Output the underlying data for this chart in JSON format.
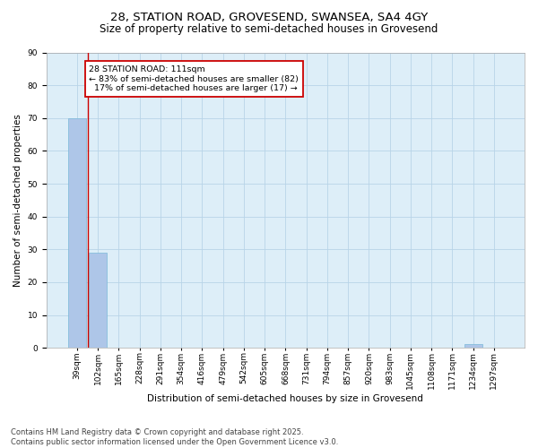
{
  "title": "28, STATION ROAD, GROVESEND, SWANSEA, SA4 4GY",
  "subtitle": "Size of property relative to semi-detached houses in Grovesend",
  "xlabel": "Distribution of semi-detached houses by size in Grovesend",
  "ylabel": "Number of semi-detached properties",
  "categories": [
    "39sqm",
    "102sqm",
    "165sqm",
    "228sqm",
    "291sqm",
    "354sqm",
    "416sqm",
    "479sqm",
    "542sqm",
    "605sqm",
    "668sqm",
    "731sqm",
    "794sqm",
    "857sqm",
    "920sqm",
    "983sqm",
    "1045sqm",
    "1108sqm",
    "1171sqm",
    "1234sqm",
    "1297sqm"
  ],
  "values": [
    70,
    29,
    0,
    0,
    0,
    0,
    0,
    0,
    0,
    0,
    0,
    0,
    0,
    0,
    0,
    0,
    0,
    0,
    0,
    1,
    0
  ],
  "bar_color": "#aec6e8",
  "bar_edge_color": "#7ab8d9",
  "background_color": "#ddeef8",
  "grid_color": "#b8d4e8",
  "red_line_color": "#cc0000",
  "annotation_box_color": "#cc0000",
  "ylim": [
    0,
    90
  ],
  "yticks": [
    0,
    10,
    20,
    30,
    40,
    50,
    60,
    70,
    80,
    90
  ],
  "property_label": "28 STATION ROAD: 111sqm",
  "pct_smaller": 83,
  "count_smaller": 82,
  "pct_larger": 17,
  "count_larger": 17,
  "red_line_x": 0.5,
  "footer": "Contains HM Land Registry data © Crown copyright and database right 2025.\nContains public sector information licensed under the Open Government Licence v3.0.",
  "title_fontsize": 9.5,
  "subtitle_fontsize": 8.5,
  "axis_label_fontsize": 7.5,
  "tick_fontsize": 6.5,
  "annotation_fontsize": 6.8,
  "footer_fontsize": 6.0
}
